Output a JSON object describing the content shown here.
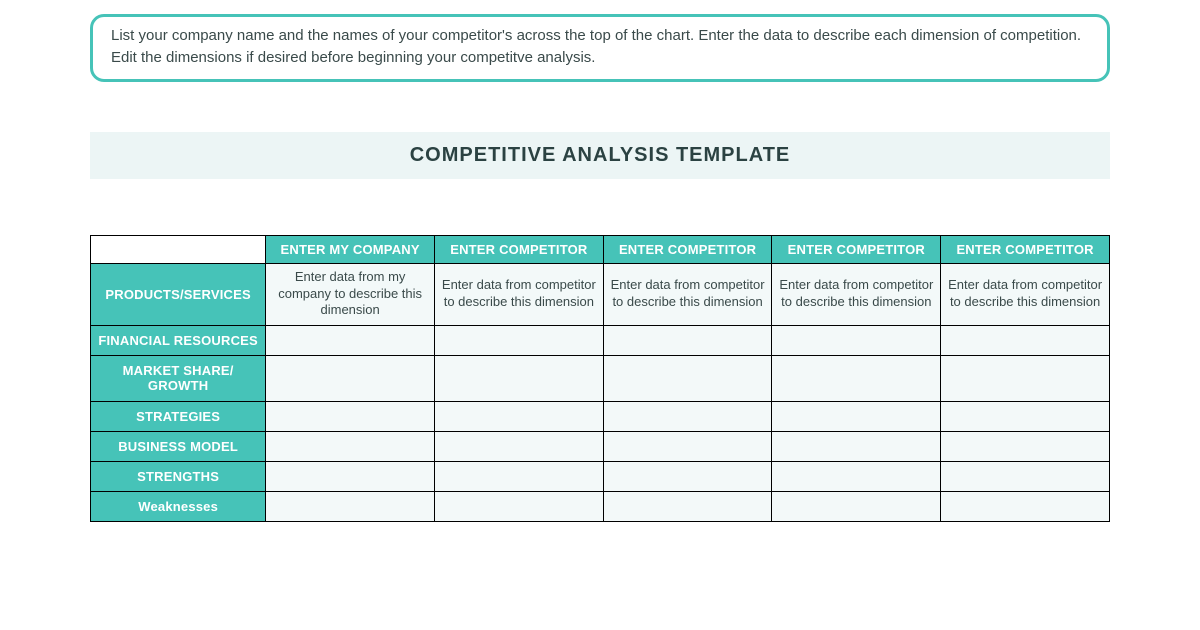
{
  "instructions": {
    "text": "List your company name and the names of your competitor's across the top of the chart. Enter the data to describe each dimension of competition. Edit the dimensions if desired before beginning your competitve analysis."
  },
  "title": "COMPETITIVE ANALYSIS TEMPLATE",
  "colors": {
    "accent": "#46c3b8",
    "cell_bg": "#f3f9f9",
    "title_bg": "#ecf5f5",
    "border": "#000000",
    "text": "#3a4a4a",
    "header_text": "#ffffff"
  },
  "table": {
    "columns": [
      "ENTER MY COMPANY",
      "ENTER COMPETITOR",
      "ENTER COMPETITOR",
      "ENTER COMPETITOR",
      "ENTER COMPETITOR"
    ],
    "rows": [
      {
        "label": "PRODUCTS/SERVICES",
        "cells": [
          "Enter data from my company to describe this dimension",
          "Enter data from competitor to describe this dimension",
          "Enter data from competitor to describe this dimension",
          "Enter data from competitor to describe this dimension",
          "Enter data from competitor to describe this dimension"
        ]
      },
      {
        "label": "FINANCIAL RESOURCES",
        "cells": [
          "",
          "",
          "",
          "",
          ""
        ]
      },
      {
        "label": "MARKET SHARE/ GROWTH",
        "cells": [
          "",
          "",
          "",
          "",
          ""
        ]
      },
      {
        "label": "STRATEGIES",
        "cells": [
          "",
          "",
          "",
          "",
          ""
        ]
      },
      {
        "label": "BUSINESS MODEL",
        "cells": [
          "",
          "",
          "",
          "",
          ""
        ]
      },
      {
        "label": "STRENGTHS",
        "cells": [
          "",
          "",
          "",
          "",
          ""
        ]
      },
      {
        "label": "Weaknesses",
        "cells": [
          "",
          "",
          "",
          "",
          ""
        ]
      }
    ]
  }
}
